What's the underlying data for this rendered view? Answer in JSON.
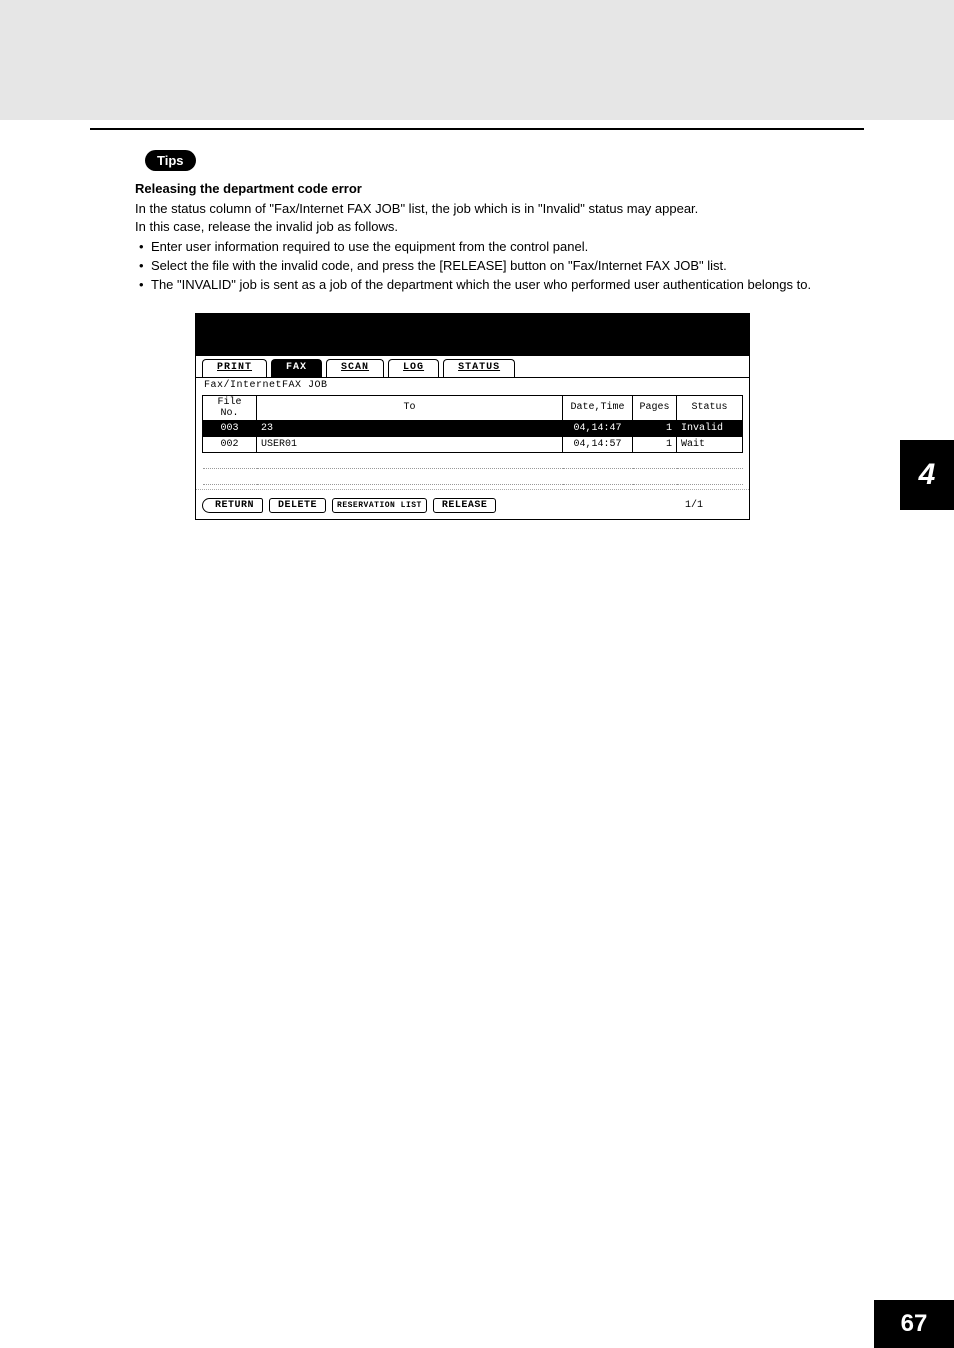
{
  "tips_label": "Tips",
  "section_title": "Releasing the department code error",
  "para1": "In the status column of \"Fax/Internet FAX JOB\" list, the job which is in \"Invalid\" status may appear.",
  "para2": "In this case, release the invalid job as follows.",
  "bullets": [
    "Enter user information required to use the equipment from the control panel.",
    "Select the file with the invalid code, and press the [RELEASE] button on \"Fax/Internet FAX JOB\" list.",
    "The \"INVALID\" job is sent as a job of the department which the user who performed user authentication belongs to."
  ],
  "lcd": {
    "tabs": [
      "PRINT",
      "FAX",
      "SCAN",
      "LOG",
      "STATUS"
    ],
    "selected_tab_index": 1,
    "subtitle": "Fax/InternetFAX JOB",
    "columns": [
      "File No.",
      "To",
      "Date,Time",
      "Pages",
      "Status"
    ],
    "col_widths": [
      "54px",
      "auto",
      "70px",
      "44px",
      "66px"
    ],
    "rows": [
      {
        "file_no": "003",
        "to": "23",
        "datetime": "04,14:47",
        "pages": "1",
        "status": "Invalid",
        "highlight": true
      },
      {
        "file_no": "002",
        "to": "USER01",
        "datetime": "04,14:57",
        "pages": "1",
        "status": "Wait",
        "highlight": false
      }
    ],
    "empty_rows": 2,
    "buttons": [
      "RETURN",
      "DELETE",
      "RESERVATION LIST",
      "RELEASE"
    ],
    "pager": "1/1"
  },
  "side_tab": "4",
  "page_number": "67",
  "colors": {
    "band": "#e6e6e6",
    "black": "#000000",
    "white": "#ffffff"
  }
}
